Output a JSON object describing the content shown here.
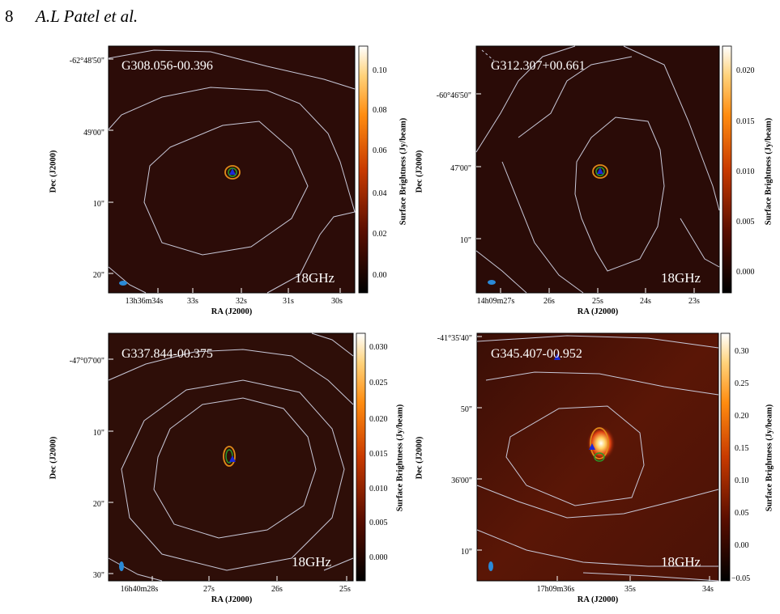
{
  "header": {
    "page_number": "8",
    "authors": "A.L Patel et al."
  },
  "panels": [
    {
      "source": "G308.056-00.396",
      "band": "18GHz",
      "ylabel": "Dec (J2000)",
      "xlabel": "RA (J2000)",
      "cbar_label": "Surface Brightness (Jy/beam)",
      "dec_ticks": [
        "-62°48'50\"",
        "49'00\"",
        "10\"",
        "20\""
      ],
      "ra_ticks": [
        "13h36m34s",
        "33s",
        "32s",
        "31s",
        "30s"
      ],
      "cbar_ticks": [
        "0.10",
        "0.08",
        "0.06",
        "0.04",
        "0.02",
        "0.00"
      ]
    },
    {
      "source": "G312.307+00.661",
      "band": "18GHz",
      "ylabel": "Dec (J2000)",
      "xlabel": "RA (J2000)",
      "cbar_label": "Surface Brightness (Jy/beam)",
      "dec_ticks": [
        "-60°46'50\"",
        "47'00\"",
        "10\""
      ],
      "ra_ticks": [
        "14h09m27s",
        "26s",
        "25s",
        "24s",
        "23s"
      ],
      "cbar_ticks": [
        "0.020",
        "0.015",
        "0.010",
        "0.005",
        "0.000"
      ]
    },
    {
      "source": "G337.844-00.375",
      "band": "18GHz",
      "ylabel": "Dec (J2000)",
      "xlabel": "RA (J2000)",
      "cbar_label": "Surface Brightness (Jy/beam)",
      "dec_ticks": [
        "-47°07'00\"",
        "10\"",
        "20\"",
        "30\""
      ],
      "ra_ticks": [
        "16h40m28s",
        "27s",
        "26s",
        "25s"
      ],
      "cbar_ticks": [
        "0.030",
        "0.025",
        "0.020",
        "0.015",
        "0.010",
        "0.005",
        "0.000"
      ]
    },
    {
      "source": "G345.407-00.952",
      "band": "18GHz",
      "ylabel": "Dec (J2000)",
      "xlabel": "RA (J2000)",
      "cbar_label": "Surface Brightness (Jy/beam)",
      "dec_ticks": [
        "-41°35'40\"",
        "50\"",
        "36'00\"",
        "10\""
      ],
      "ra_ticks": [
        "17h09m36s",
        "35s",
        "34s"
      ],
      "cbar_ticks": [
        "0.30",
        "0.25",
        "0.20",
        "0.15",
        "0.10",
        "0.05",
        "0.00",
        "−0.05"
      ]
    }
  ]
}
